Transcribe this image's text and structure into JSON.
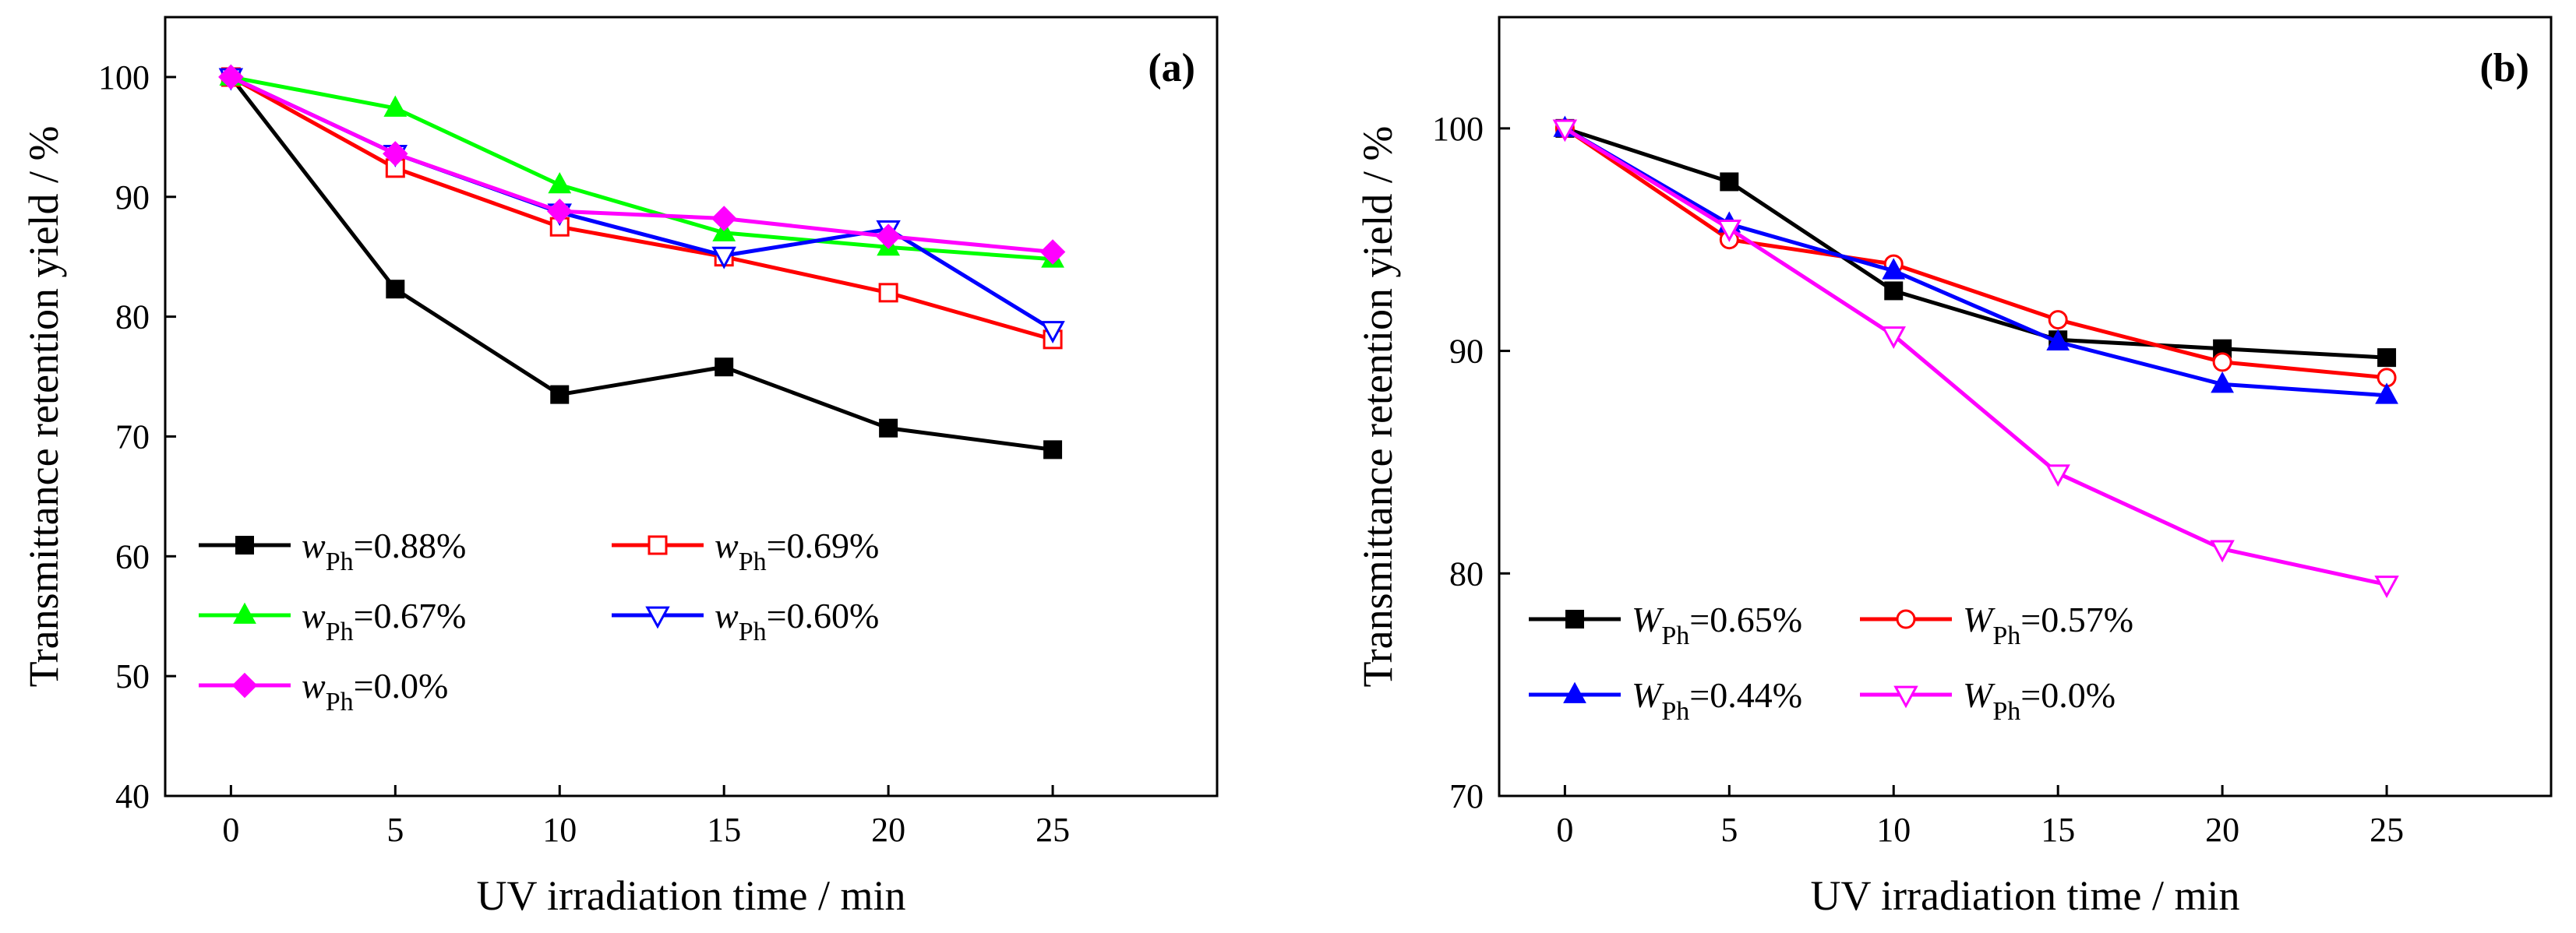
{
  "chart_data": [
    {
      "type": "line",
      "panel_label": "(a)",
      "xlabel": "UV irradiation time / min",
      "ylabel": "Transmittance retention yield / %",
      "xlim": [
        -2,
        30
      ],
      "ylim": [
        40,
        105
      ],
      "xticks": [
        0,
        5,
        10,
        15,
        20,
        25
      ],
      "yticks": [
        40,
        50,
        60,
        70,
        80,
        90,
        100
      ],
      "grid": false,
      "legend_position": "bottom-left",
      "legend_columns": 2,
      "x": [
        0,
        5,
        10,
        15,
        20,
        25
      ],
      "series": [
        {
          "name": "wPh=0.88%",
          "symbol": "w",
          "subscript": "Ph",
          "value_label": "=0.88%",
          "color": "#000000",
          "marker": "square",
          "filled": true,
          "values": [
            100,
            82.3,
            73.5,
            75.8,
            70.7,
            68.9
          ]
        },
        {
          "name": "wPh=0.69%",
          "symbol": "w",
          "subscript": "Ph",
          "value_label": "=0.69%",
          "color": "#ff0000",
          "marker": "square",
          "filled": false,
          "values": [
            100,
            92.4,
            87.5,
            85.0,
            82.0,
            78.1
          ]
        },
        {
          "name": "wPh=0.67%",
          "symbol": "w",
          "subscript": "Ph",
          "value_label": "=0.67%",
          "color": "#00ff00",
          "marker": "triangle-up",
          "filled": true,
          "values": [
            100,
            97.4,
            91.0,
            87.0,
            85.8,
            84.8
          ]
        },
        {
          "name": "wPh=0.60%",
          "symbol": "w",
          "subscript": "Ph",
          "value_label": "=0.60%",
          "color": "#0000ff",
          "marker": "triangle-down",
          "filled": false,
          "values": [
            100,
            93.6,
            88.7,
            85.1,
            87.3,
            78.9
          ]
        },
        {
          "name": "wPh=0.0%",
          "symbol": "w",
          "subscript": "Ph",
          "value_label": "=0.0%",
          "color": "#ff00ff",
          "marker": "diamond",
          "filled": true,
          "values": [
            100,
            93.6,
            88.8,
            88.2,
            86.7,
            85.4
          ]
        }
      ]
    },
    {
      "type": "line",
      "panel_label": "(b)",
      "xlabel": "UV irradiation time / min",
      "ylabel": "Transmittance retention yield / %",
      "xlim": [
        -2,
        30
      ],
      "ylim": [
        70,
        105
      ],
      "xticks": [
        0,
        5,
        10,
        15,
        20,
        25
      ],
      "yticks": [
        70,
        80,
        90,
        100
      ],
      "grid": false,
      "legend_position": "bottom-left",
      "legend_columns": 2,
      "x": [
        0,
        5,
        10,
        15,
        20,
        25
      ],
      "series": [
        {
          "name": "WPh=0.65%",
          "symbol": "W",
          "subscript": "Ph",
          "value_label": "=0.65%",
          "color": "#000000",
          "marker": "square",
          "filled": true,
          "values": [
            100,
            97.6,
            92.7,
            90.5,
            90.1,
            89.7
          ]
        },
        {
          "name": "WPh=0.57%",
          "symbol": "W",
          "subscript": "Ph",
          "value_label": "=0.57%",
          "color": "#ff0000",
          "marker": "circle",
          "filled": false,
          "values": [
            100,
            95.0,
            93.9,
            91.4,
            89.5,
            88.8
          ]
        },
        {
          "name": "WPh=0.44%",
          "symbol": "W",
          "subscript": "Ph",
          "value_label": "=0.44%",
          "color": "#0000ff",
          "marker": "triangle-up",
          "filled": true,
          "values": [
            100,
            95.7,
            93.6,
            90.4,
            88.5,
            88.0
          ]
        },
        {
          "name": "WPh=0.0%",
          "symbol": "W",
          "subscript": "Ph",
          "value_label": "=0.0%",
          "color": "#ff00ff",
          "marker": "triangle-down",
          "filled": false,
          "values": [
            100,
            95.5,
            90.7,
            84.5,
            81.1,
            79.5
          ]
        }
      ]
    }
  ]
}
